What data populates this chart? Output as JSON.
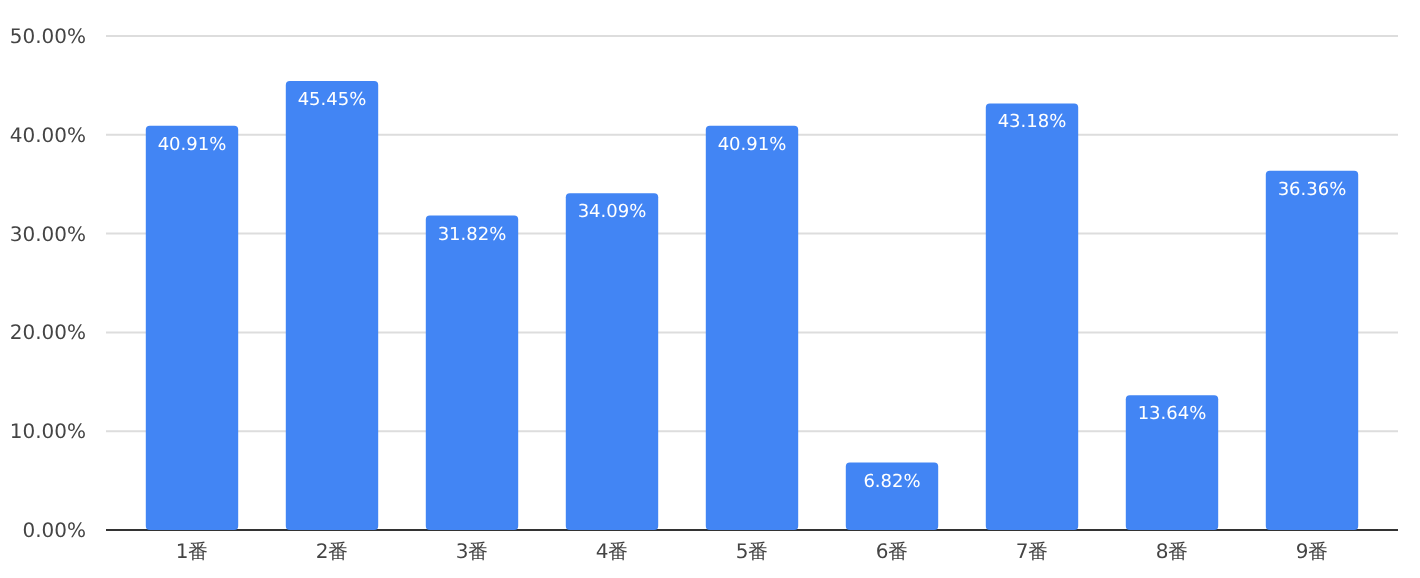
{
  "chart_data": {
    "type": "bar",
    "categories": [
      "1番",
      "2番",
      "3番",
      "4番",
      "5番",
      "6番",
      "7番",
      "8番",
      "9番"
    ],
    "values": [
      40.91,
      45.45,
      31.82,
      34.09,
      40.91,
      6.82,
      43.18,
      13.64,
      36.36
    ],
    "value_labels": [
      "40.91%",
      "45.45%",
      "31.82%",
      "34.09%",
      "40.91%",
      "6.82%",
      "43.18%",
      "13.64%",
      "36.36%"
    ],
    "color": "#4285f4",
    "ylim": [
      0,
      50
    ],
    "yticks": [
      {
        "value": 0,
        "label": "0.00%"
      },
      {
        "value": 10,
        "label": "10.00%"
      },
      {
        "value": 20,
        "label": "20.00%"
      },
      {
        "value": 30,
        "label": "30.00%"
      },
      {
        "value": 40,
        "label": "40.00%"
      },
      {
        "value": 50,
        "label": "50.00%"
      }
    ],
    "grid": "y"
  }
}
